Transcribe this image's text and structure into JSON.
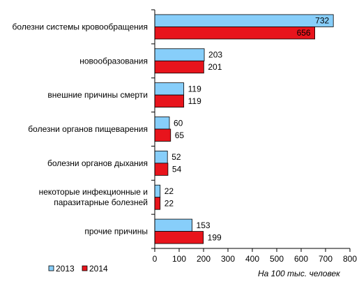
{
  "chart_data": {
    "type": "bar",
    "orientation": "horizontal",
    "categories": [
      [
        "болезни системы кровообращения"
      ],
      [
        "новообразования"
      ],
      [
        "внешние причины смерти"
      ],
      [
        "болезни органов пищеварения"
      ],
      [
        "болезни органов дыхания"
      ],
      [
        "некоторые инфекционные и",
        "паразитарные болезней"
      ],
      [
        "прочие причины"
      ]
    ],
    "series": [
      {
        "name": "2013",
        "color": "#87cefa",
        "values": [
          732,
          203,
          119,
          60,
          52,
          22,
          153
        ]
      },
      {
        "name": "2014",
        "color": "#e8141c",
        "values": [
          656,
          201,
          119,
          65,
          54,
          22,
          199
        ]
      }
    ],
    "xlim": [
      0,
      800
    ],
    "xticks": [
      0,
      100,
      200,
      300,
      400,
      500,
      600,
      700,
      800
    ],
    "xlabel": "На 100 тыс. человек",
    "grid": false,
    "legend_position": "bottom-left"
  }
}
